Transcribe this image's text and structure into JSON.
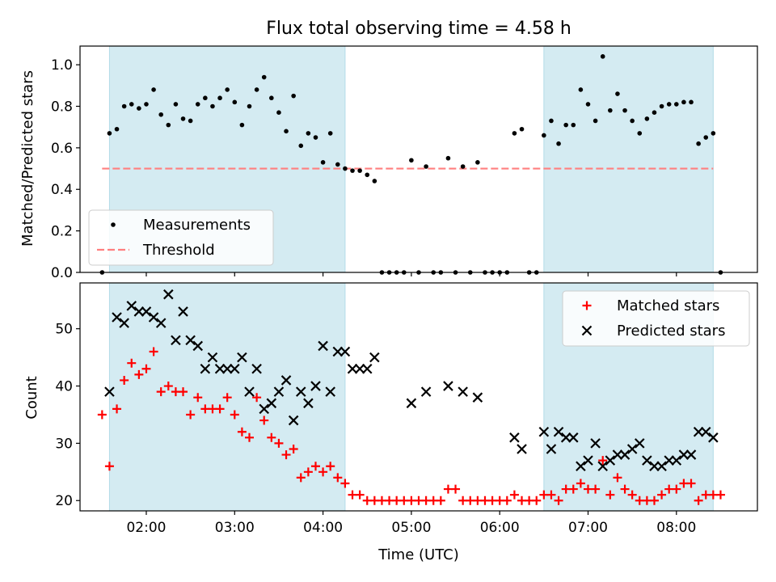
{
  "figure": {
    "title": "Flux total observing time = 4.58 h"
  },
  "chart_data": [
    {
      "type": "scatter",
      "panel": "top",
      "xlabel": "",
      "ylabel": "Matched/Predicted stars",
      "xlim": [
        "01:15",
        "08:55"
      ],
      "ylim": [
        0,
        1.09
      ],
      "yticks": [
        "0.0",
        "0.2",
        "0.4",
        "0.6",
        "0.8",
        "1.0"
      ],
      "shaded_intervals": [
        [
          "01:35",
          "04:15"
        ],
        [
          "06:30",
          "08:25"
        ]
      ],
      "shade_color": "#add8e6",
      "legend": {
        "position": "lower-left",
        "entries": [
          {
            "label": "Measurements",
            "marker": "dot",
            "color": "#000000"
          },
          {
            "label": "Threshold",
            "marker": "dashed-line",
            "color": "#ff7f7f"
          }
        ]
      },
      "threshold": {
        "value": 0.5,
        "x": [
          "01:30",
          "08:25"
        ],
        "color": "#ff7f7f"
      },
      "series": [
        {
          "name": "Measurements",
          "color": "#000000",
          "points": [
            [
              "01:30",
              0.0
            ],
            [
              "01:35",
              0.67
            ],
            [
              "01:40",
              0.69
            ],
            [
              "01:45",
              0.8
            ],
            [
              "01:50",
              0.81
            ],
            [
              "01:55",
              0.79
            ],
            [
              "02:00",
              0.81
            ],
            [
              "02:05",
              0.88
            ],
            [
              "02:10",
              0.76
            ],
            [
              "02:15",
              0.71
            ],
            [
              "02:20",
              0.81
            ],
            [
              "02:25",
              0.74
            ],
            [
              "02:30",
              0.73
            ],
            [
              "02:35",
              0.81
            ],
            [
              "02:40",
              0.84
            ],
            [
              "02:45",
              0.8
            ],
            [
              "02:50",
              0.84
            ],
            [
              "02:55",
              0.88
            ],
            [
              "03:00",
              0.82
            ],
            [
              "03:05",
              0.71
            ],
            [
              "03:10",
              0.8
            ],
            [
              "03:15",
              0.88
            ],
            [
              "03:20",
              0.94
            ],
            [
              "03:25",
              0.84
            ],
            [
              "03:30",
              0.77
            ],
            [
              "03:35",
              0.68
            ],
            [
              "03:40",
              0.85
            ],
            [
              "03:45",
              0.61
            ],
            [
              "03:50",
              0.67
            ],
            [
              "03:55",
              0.65
            ],
            [
              "04:00",
              0.53
            ],
            [
              "04:05",
              0.67
            ],
            [
              "04:10",
              0.52
            ],
            [
              "04:15",
              0.5
            ],
            [
              "04:20",
              0.49
            ],
            [
              "04:25",
              0.49
            ],
            [
              "04:30",
              0.47
            ],
            [
              "04:35",
              0.44
            ],
            [
              "04:40",
              0.0
            ],
            [
              "04:45",
              0.0
            ],
            [
              "04:50",
              0.0
            ],
            [
              "04:55",
              0.0
            ],
            [
              "05:00",
              0.54
            ],
            [
              "05:05",
              0.0
            ],
            [
              "05:10",
              0.51
            ],
            [
              "05:15",
              0.0
            ],
            [
              "05:20",
              0.0
            ],
            [
              "05:25",
              0.55
            ],
            [
              "05:30",
              0.0
            ],
            [
              "05:35",
              0.51
            ],
            [
              "05:40",
              0.0
            ],
            [
              "05:45",
              0.53
            ],
            [
              "05:50",
              0.0
            ],
            [
              "05:55",
              0.0
            ],
            [
              "06:00",
              0.0
            ],
            [
              "06:05",
              0.0
            ],
            [
              "06:10",
              0.67
            ],
            [
              "06:15",
              0.69
            ],
            [
              "06:20",
              0.0
            ],
            [
              "06:25",
              0.0
            ],
            [
              "06:30",
              0.66
            ],
            [
              "06:35",
              0.73
            ],
            [
              "06:40",
              0.62
            ],
            [
              "06:45",
              0.71
            ],
            [
              "06:50",
              0.71
            ],
            [
              "06:55",
              0.88
            ],
            [
              "07:00",
              0.81
            ],
            [
              "07:05",
              0.73
            ],
            [
              "07:10",
              1.04
            ],
            [
              "07:15",
              0.78
            ],
            [
              "07:20",
              0.86
            ],
            [
              "07:25",
              0.78
            ],
            [
              "07:30",
              0.73
            ],
            [
              "07:35",
              0.67
            ],
            [
              "07:40",
              0.74
            ],
            [
              "07:45",
              0.77
            ],
            [
              "07:50",
              0.8
            ],
            [
              "07:55",
              0.81
            ],
            [
              "08:00",
              0.81
            ],
            [
              "08:05",
              0.82
            ],
            [
              "08:10",
              0.82
            ],
            [
              "08:15",
              0.62
            ],
            [
              "08:20",
              0.65
            ],
            [
              "08:25",
              0.67
            ],
            [
              "08:30",
              0.0
            ]
          ]
        }
      ]
    },
    {
      "type": "scatter",
      "panel": "bottom",
      "xlabel": "Time (UTC)",
      "ylabel": "Count",
      "xlim": [
        "01:15",
        "08:55"
      ],
      "ylim": [
        18.2,
        58.0
      ],
      "yticks": [
        "20",
        "30",
        "40",
        "50"
      ],
      "xticks": [
        "02:00",
        "03:00",
        "04:00",
        "05:00",
        "06:00",
        "07:00",
        "08:00"
      ],
      "shaded_intervals": [
        [
          "01:35",
          "04:15"
        ],
        [
          "06:30",
          "08:25"
        ]
      ],
      "shade_color": "#add8e6",
      "legend": {
        "position": "top-right",
        "entries": [
          {
            "label": "Matched stars",
            "marker": "plus",
            "color": "#ff0000"
          },
          {
            "label": "Predicted stars",
            "marker": "cross",
            "color": "#000000"
          }
        ]
      },
      "series": [
        {
          "name": "Matched stars",
          "marker": "plus",
          "color": "#ff0000",
          "points": [
            [
              "01:30",
              35
            ],
            [
              "01:35",
              26
            ],
            [
              "01:40",
              36
            ],
            [
              "01:45",
              41
            ],
            [
              "01:50",
              44
            ],
            [
              "01:55",
              42
            ],
            [
              "02:00",
              43
            ],
            [
              "02:05",
              46
            ],
            [
              "02:10",
              39
            ],
            [
              "02:15",
              40
            ],
            [
              "02:20",
              39
            ],
            [
              "02:25",
              39
            ],
            [
              "02:30",
              35
            ],
            [
              "02:35",
              38
            ],
            [
              "02:40",
              36
            ],
            [
              "02:45",
              36
            ],
            [
              "02:50",
              36
            ],
            [
              "02:55",
              38
            ],
            [
              "03:00",
              35
            ],
            [
              "03:05",
              32
            ],
            [
              "03:10",
              31
            ],
            [
              "03:15",
              38
            ],
            [
              "03:20",
              34
            ],
            [
              "03:25",
              31
            ],
            [
              "03:30",
              30
            ],
            [
              "03:35",
              28
            ],
            [
              "03:40",
              29
            ],
            [
              "03:45",
              24
            ],
            [
              "03:50",
              25
            ],
            [
              "03:55",
              26
            ],
            [
              "04:00",
              25
            ],
            [
              "04:05",
              26
            ],
            [
              "04:10",
              24
            ],
            [
              "04:15",
              23
            ],
            [
              "04:20",
              21
            ],
            [
              "04:25",
              21
            ],
            [
              "04:30",
              20
            ],
            [
              "04:35",
              20
            ],
            [
              "04:40",
              20
            ],
            [
              "04:45",
              20
            ],
            [
              "04:50",
              20
            ],
            [
              "04:55",
              20
            ],
            [
              "05:00",
              20
            ],
            [
              "05:05",
              20
            ],
            [
              "05:10",
              20
            ],
            [
              "05:15",
              20
            ],
            [
              "05:20",
              20
            ],
            [
              "05:25",
              22
            ],
            [
              "05:30",
              22
            ],
            [
              "05:35",
              20
            ],
            [
              "05:40",
              20
            ],
            [
              "05:45",
              20
            ],
            [
              "05:50",
              20
            ],
            [
              "05:55",
              20
            ],
            [
              "06:00",
              20
            ],
            [
              "06:05",
              20
            ],
            [
              "06:10",
              21
            ],
            [
              "06:15",
              20
            ],
            [
              "06:20",
              20
            ],
            [
              "06:25",
              20
            ],
            [
              "06:30",
              21
            ],
            [
              "06:35",
              21
            ],
            [
              "06:40",
              20
            ],
            [
              "06:45",
              22
            ],
            [
              "06:50",
              22
            ],
            [
              "06:55",
              23
            ],
            [
              "07:00",
              22
            ],
            [
              "07:05",
              22
            ],
            [
              "07:10",
              27
            ],
            [
              "07:15",
              21
            ],
            [
              "07:20",
              24
            ],
            [
              "07:25",
              22
            ],
            [
              "07:30",
              21
            ],
            [
              "07:35",
              20
            ],
            [
              "07:40",
              20
            ],
            [
              "07:45",
              20
            ],
            [
              "07:50",
              21
            ],
            [
              "07:55",
              22
            ],
            [
              "08:00",
              22
            ],
            [
              "08:05",
              23
            ],
            [
              "08:10",
              23
            ],
            [
              "08:15",
              20
            ],
            [
              "08:20",
              21
            ],
            [
              "08:25",
              21
            ],
            [
              "08:30",
              21
            ]
          ]
        },
        {
          "name": "Predicted stars",
          "marker": "cross",
          "color": "#000000",
          "points": [
            [
              "01:35",
              39
            ],
            [
              "01:40",
              52
            ],
            [
              "01:45",
              51
            ],
            [
              "01:50",
              54
            ],
            [
              "01:55",
              53
            ],
            [
              "02:00",
              53
            ],
            [
              "02:05",
              52
            ],
            [
              "02:10",
              51
            ],
            [
              "02:15",
              56
            ],
            [
              "02:20",
              48
            ],
            [
              "02:25",
              53
            ],
            [
              "02:30",
              48
            ],
            [
              "02:35",
              47
            ],
            [
              "02:40",
              43
            ],
            [
              "02:45",
              45
            ],
            [
              "02:50",
              43
            ],
            [
              "02:55",
              43
            ],
            [
              "03:00",
              43
            ],
            [
              "03:05",
              45
            ],
            [
              "03:10",
              39
            ],
            [
              "03:15",
              43
            ],
            [
              "03:20",
              36
            ],
            [
              "03:25",
              37
            ],
            [
              "03:30",
              39
            ],
            [
              "03:35",
              41
            ],
            [
              "03:40",
              34
            ],
            [
              "03:45",
              39
            ],
            [
              "03:50",
              37
            ],
            [
              "03:55",
              40
            ],
            [
              "04:00",
              47
            ],
            [
              "04:05",
              39
            ],
            [
              "04:10",
              46
            ],
            [
              "04:15",
              46
            ],
            [
              "04:20",
              43
            ],
            [
              "04:25",
              43
            ],
            [
              "04:30",
              43
            ],
            [
              "04:35",
              45
            ],
            [
              "05:00",
              37
            ],
            [
              "05:10",
              39
            ],
            [
              "05:25",
              40
            ],
            [
              "05:35",
              39
            ],
            [
              "05:45",
              38
            ],
            [
              "06:10",
              31
            ],
            [
              "06:15",
              29
            ],
            [
              "06:30",
              32
            ],
            [
              "06:35",
              29
            ],
            [
              "06:40",
              32
            ],
            [
              "06:45",
              31
            ],
            [
              "06:50",
              31
            ],
            [
              "06:55",
              26
            ],
            [
              "07:00",
              27
            ],
            [
              "07:05",
              30
            ],
            [
              "07:10",
              26
            ],
            [
              "07:15",
              27
            ],
            [
              "07:20",
              28
            ],
            [
              "07:25",
              28
            ],
            [
              "07:30",
              29
            ],
            [
              "07:35",
              30
            ],
            [
              "07:40",
              27
            ],
            [
              "07:45",
              26
            ],
            [
              "07:50",
              26
            ],
            [
              "07:55",
              27
            ],
            [
              "08:00",
              27
            ],
            [
              "08:05",
              28
            ],
            [
              "08:10",
              28
            ],
            [
              "08:15",
              32
            ],
            [
              "08:20",
              32
            ],
            [
              "08:25",
              31
            ]
          ]
        }
      ]
    }
  ]
}
